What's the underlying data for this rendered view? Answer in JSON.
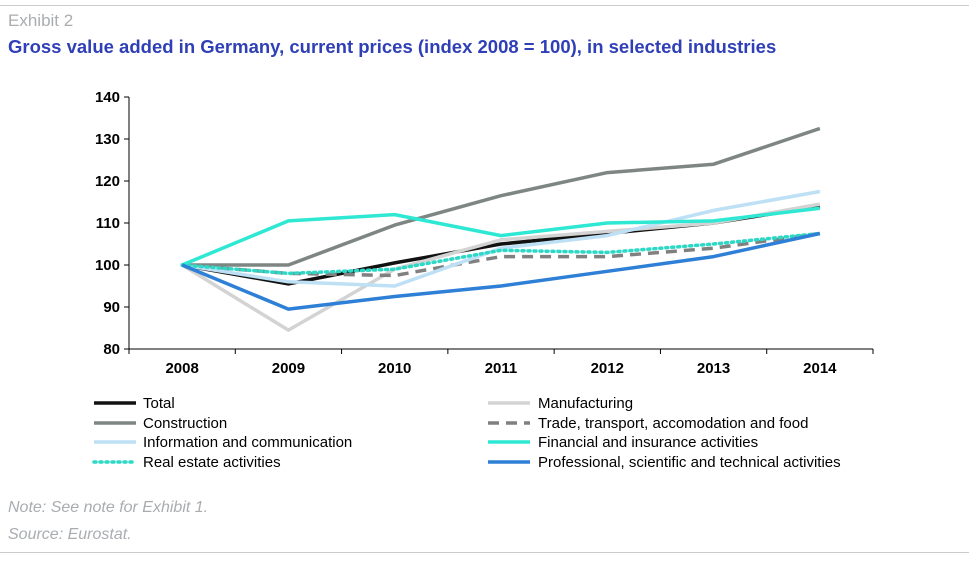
{
  "header": {
    "exhibit": "Exhibit 2",
    "title": "Gross value added in Germany, current prices (index 2008 = 100), in selected industries"
  },
  "footer": {
    "note": "Note: See note for Exhibit 1.",
    "source": "Source: Eurostat."
  },
  "chart_data": {
    "type": "line",
    "title": "Gross value added in Germany, current prices (index 2008 = 100), in selected industries",
    "xlabel": "",
    "ylabel": "",
    "x": [
      "2008",
      "2009",
      "2010",
      "2011",
      "2012",
      "2013",
      "2014"
    ],
    "ylim": [
      80,
      140
    ],
    "yticks": [
      80,
      90,
      100,
      110,
      120,
      130,
      140
    ],
    "grid": false,
    "legend_position": "bottom",
    "series": [
      {
        "name": "Total",
        "color": "#111111",
        "dash": "solid",
        "values": [
          100,
          95.5,
          100.5,
          105,
          107.5,
          110,
          114
        ]
      },
      {
        "name": "Manufacturing",
        "color": "#d3d3d3",
        "dash": "solid",
        "values": [
          100,
          84.5,
          99,
          106,
          108,
          110,
          114.5
        ]
      },
      {
        "name": "Construction",
        "color": "#7e8684",
        "dash": "solid",
        "values": [
          100,
          100,
          109.5,
          116.5,
          122,
          124,
          132.5
        ]
      },
      {
        "name": "Trade, transport, accomodation and food",
        "color": "#808080",
        "dash": "dashed",
        "values": [
          100,
          98,
          97.5,
          102,
          102,
          104,
          107.5
        ]
      },
      {
        "name": "Information and communication",
        "color": "#bde0f5",
        "dash": "solid",
        "values": [
          100,
          96,
          95,
          104,
          107,
          113,
          117.5
        ]
      },
      {
        "name": "Financial and insurance activities",
        "color": "#2ee8d4",
        "dash": "solid",
        "values": [
          100,
          110.5,
          112,
          107,
          110,
          110.5,
          113.5
        ]
      },
      {
        "name": "Real estate activities",
        "color": "#2ed8c6",
        "dash": "dotted",
        "values": [
          100,
          98,
          99,
          103.5,
          103,
          105,
          107.5
        ]
      },
      {
        "name": "Professional, scientific and technical activities",
        "color": "#2e7fd6",
        "dash": "solid",
        "values": [
          100,
          89.5,
          92.5,
          95,
          98.5,
          102,
          107.5
        ]
      }
    ]
  }
}
